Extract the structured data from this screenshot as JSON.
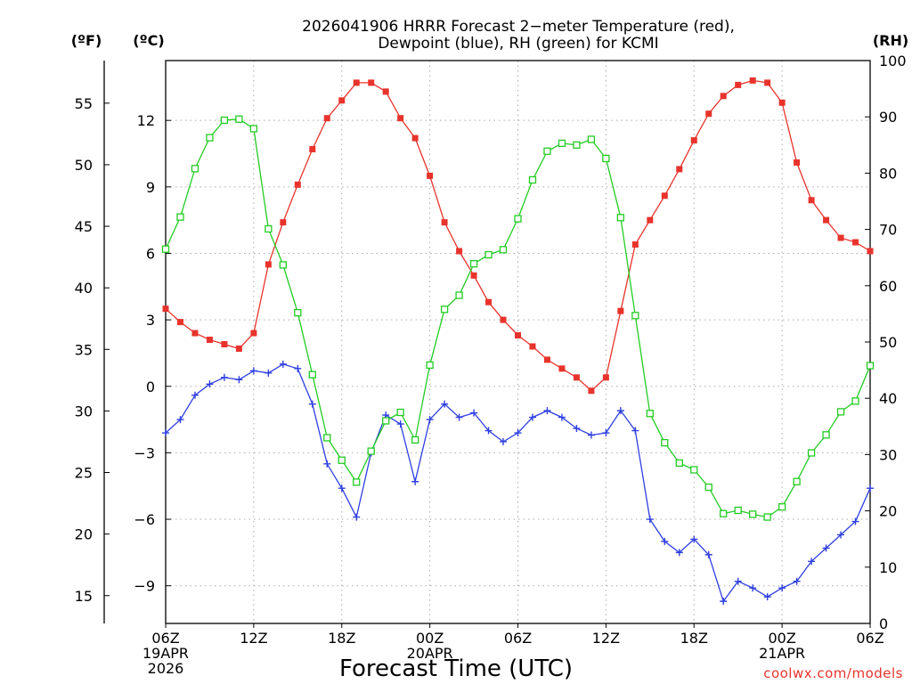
{
  "chart_data": {
    "type": "line",
    "title_lines": [
      "2026041906 HRRR Forecast 2−meter Temperature (red),",
      "Dewpoint (blue), RH (green) for KCMI"
    ],
    "xlabel": "Forecast Time (UTC)",
    "credit": "coolwx.com/models",
    "units": {
      "f": "(ºF)",
      "c": "(ºC)",
      "rh": "(RH)"
    },
    "x_unit": "forecast hour from 2026-04-19 06Z",
    "xlim": [
      0,
      48
    ],
    "x_ticks": [
      {
        "x": 0,
        "lines": [
          "06Z",
          "19APR",
          "2026"
        ]
      },
      {
        "x": 6,
        "lines": [
          "12Z"
        ]
      },
      {
        "x": 12,
        "lines": [
          "18Z"
        ]
      },
      {
        "x": 18,
        "lines": [
          "00Z",
          "20APR"
        ]
      },
      {
        "x": 24,
        "lines": [
          "06Z"
        ]
      },
      {
        "x": 30,
        "lines": [
          "12Z"
        ]
      },
      {
        "x": 36,
        "lines": [
          "18Z"
        ]
      },
      {
        "x": 42,
        "lines": [
          "00Z",
          "21APR"
        ]
      },
      {
        "x": 48,
        "lines": [
          "06Z"
        ]
      }
    ],
    "axes": {
      "celsius": {
        "lim": [
          -10.7,
          14.7
        ],
        "ticks": [
          "12",
          "9",
          "6",
          "3",
          "0",
          "−3",
          "−6",
          "−9"
        ],
        "tick_values": [
          12,
          9,
          6,
          3,
          0,
          -3,
          -6,
          -9
        ]
      },
      "fahrenheit": {
        "lim": [
          12.74,
          58.46
        ],
        "ticks": [
          "55",
          "50",
          "45",
          "40",
          "35",
          "30",
          "25",
          "20",
          "15"
        ],
        "tick_values": [
          55,
          50,
          45,
          40,
          35,
          30,
          25,
          20,
          15
        ]
      },
      "rh": {
        "lim": [
          0,
          100
        ],
        "ticks": [
          "100",
          "90",
          "80",
          "70",
          "60",
          "50",
          "40",
          "30",
          "20",
          "10",
          "0"
        ],
        "tick_values": [
          100,
          90,
          80,
          70,
          60,
          50,
          40,
          30,
          20,
          10,
          0
        ]
      }
    },
    "grid": true,
    "x": [
      0,
      1,
      2,
      3,
      4,
      5,
      6,
      7,
      8,
      9,
      10,
      11,
      12,
      13,
      14,
      15,
      16,
      17,
      18,
      19,
      20,
      21,
      22,
      23,
      24,
      25,
      26,
      27,
      28,
      29,
      30,
      31,
      32,
      33,
      34,
      35,
      36,
      37,
      38,
      39,
      40,
      41,
      42,
      43,
      44,
      45,
      46,
      47,
      48
    ],
    "series": [
      {
        "name": "Temperature (red)",
        "axis": "celsius",
        "color": "#e8332c",
        "marker": "filled-square",
        "values": [
          3.5,
          2.9,
          2.4,
          2.1,
          1.9,
          1.7,
          2.4,
          5.5,
          7.4,
          9.1,
          10.7,
          12.1,
          12.9,
          13.7,
          13.7,
          13.3,
          12.1,
          11.2,
          9.5,
          7.4,
          6.1,
          5.0,
          3.8,
          3.0,
          2.3,
          1.8,
          1.2,
          0.8,
          0.4,
          -0.2,
          0.4,
          3.4,
          6.4,
          7.5,
          8.6,
          9.8,
          11.1,
          12.3,
          13.1,
          13.6,
          13.8,
          13.7,
          12.8,
          10.1,
          8.4,
          7.5,
          6.7,
          6.5,
          6.1
        ]
      },
      {
        "name": "Dewpoint (blue)",
        "axis": "celsius",
        "color": "#2f3fe0",
        "marker": "plus",
        "values": [
          -2.1,
          -1.5,
          -0.4,
          0.1,
          0.4,
          0.3,
          0.7,
          0.6,
          1.0,
          0.8,
          -0.8,
          -3.5,
          -4.6,
          -5.9,
          -3.0,
          -1.3,
          -1.7,
          -4.3,
          -1.5,
          -0.8,
          -1.4,
          -1.2,
          -2.0,
          -2.5,
          -2.1,
          -1.4,
          -1.1,
          -1.4,
          -1.9,
          -2.2,
          -2.1,
          -1.1,
          -2.0,
          -6.0,
          -7.0,
          -7.5,
          -6.9,
          -7.6,
          -9.7,
          -8.8,
          -9.1,
          -9.5,
          -9.1,
          -8.8,
          -7.9,
          -7.3,
          -6.7,
          -6.1,
          -4.6
        ]
      },
      {
        "name": "RH (green)",
        "axis": "rh",
        "color": "#22cc22",
        "marker": "open-square",
        "values": [
          66.5,
          72.2,
          80.8,
          86.3,
          89.4,
          89.6,
          87.9,
          70.1,
          63.7,
          55.2,
          44.2,
          33.0,
          29.0,
          25.1,
          30.6,
          36.0,
          37.5,
          32.6,
          45.9,
          55.8,
          58.3,
          63.9,
          65.5,
          66.4,
          71.9,
          78.8,
          83.9,
          85.3,
          85.0,
          86.0,
          82.6,
          72.1,
          54.7,
          37.3,
          32.1,
          28.5,
          27.3,
          24.2,
          19.5,
          20.1,
          19.4,
          18.9,
          20.7,
          25.2,
          30.3,
          33.5,
          37.6,
          39.5,
          45.8
        ]
      }
    ]
  }
}
